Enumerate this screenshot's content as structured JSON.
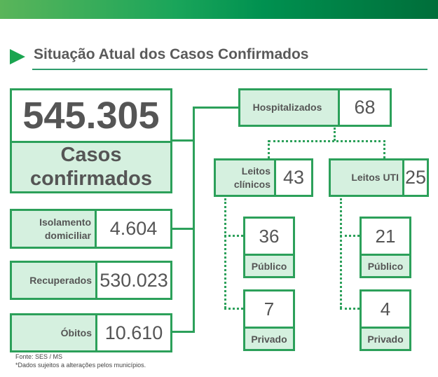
{
  "header": {
    "title": "Situação Atual dos Casos Confirmados",
    "accent": "#2ca05a"
  },
  "confirmados": {
    "value": "545.305",
    "label": "Casos confirmados"
  },
  "isolamento": {
    "label": "Isolamento domiciliar",
    "value": "4.604"
  },
  "recuperados": {
    "label": "Recuperados",
    "value": "530.023"
  },
  "obitos": {
    "label": "Óbitos",
    "value": "10.610"
  },
  "hospitalizados": {
    "label": "Hospitalizados",
    "value": "68"
  },
  "clinicos": {
    "label": "Leitos clínicos",
    "value": "43",
    "publico": {
      "value": "36",
      "label": "Público"
    },
    "privado": {
      "value": "7",
      "label": "Privado"
    }
  },
  "uti": {
    "label": "Leitos UTI",
    "value": "25",
    "publico": {
      "value": "21",
      "label": "Público"
    },
    "privado": {
      "value": "4",
      "label": "Privado"
    }
  },
  "footer": {
    "source": "Fonte: SES / MS",
    "note": "*Dados sujeitos a alterações pelos municípios."
  }
}
